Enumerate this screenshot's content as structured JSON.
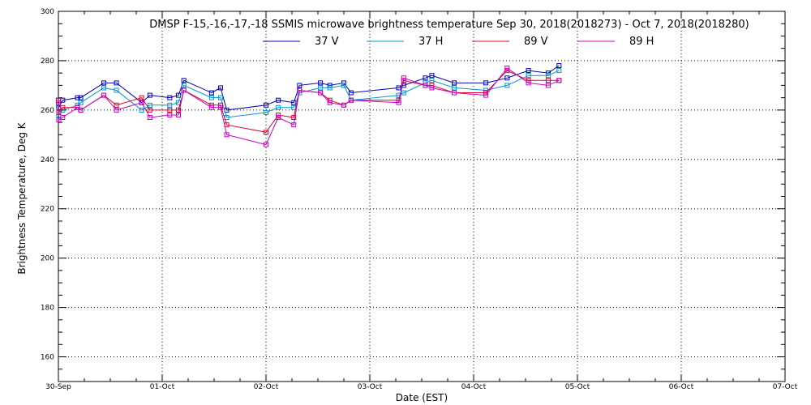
{
  "chart_data": {
    "type": "line",
    "title": "DMSP F-15,-16,-17,-18 SSMIS microwave brightness temperature Sep 30, 2018(2018273) - Oct  7, 2018(2018280)",
    "xlabel": "Date (EST)",
    "ylabel": "Brightness Temperature, Deg K",
    "xlim": [
      "2018-09-30T00:00",
      "2018-10-07T00:00"
    ],
    "ylim": [
      150,
      300
    ],
    "x_ticks": [
      "30-Sep",
      "01-Oct",
      "02-Oct",
      "03-Oct",
      "04-Oct",
      "05-Oct",
      "06-Oct",
      "07-Oct"
    ],
    "y_ticks": [
      160,
      180,
      200,
      220,
      240,
      260,
      280,
      300
    ],
    "grid": true,
    "legend_position": "top-center",
    "series": [
      {
        "name": "37 V",
        "color": "#0000b4",
        "x": [
          "2018-09-30T00:00",
          "2018-09-30T00:05",
          "2018-09-30T01:00",
          "2018-09-30T04:25",
          "2018-09-30T05:10",
          "2018-09-30T10:30",
          "2018-09-30T13:25",
          "2018-09-30T19:15",
          "2018-09-30T21:10",
          "2018-10-01T01:45",
          "2018-10-01T03:45",
          "2018-10-01T05:00",
          "2018-10-01T11:25",
          "2018-10-01T13:30",
          "2018-10-01T14:55",
          "2018-10-02T00:00",
          "2018-10-02T02:50",
          "2018-10-02T06:25",
          "2018-10-02T07:45",
          "2018-10-02T12:35",
          "2018-10-02T14:45",
          "2018-10-02T18:00",
          "2018-10-02T19:40",
          "2018-10-03T06:40",
          "2018-10-03T07:50",
          "2018-10-03T12:50",
          "2018-10-03T14:20",
          "2018-10-03T19:30",
          "2018-10-04T02:50",
          "2018-10-04T07:45",
          "2018-10-04T12:40",
          "2018-10-04T17:15",
          "2018-10-04T19:45"
        ],
        "y": [
          264,
          261,
          264,
          265,
          265,
          271,
          271,
          263,
          266,
          265,
          266,
          272,
          267,
          269,
          260,
          262,
          264,
          263,
          270,
          271,
          270,
          271,
          267,
          269,
          270,
          273,
          274,
          271,
          271,
          273,
          276,
          275,
          278
        ]
      },
      {
        "name": "37 H",
        "color": "#0096d2",
        "x": [
          "2018-09-30T00:00",
          "2018-09-30T00:05",
          "2018-09-30T01:00",
          "2018-09-30T04:25",
          "2018-09-30T05:10",
          "2018-09-30T10:30",
          "2018-09-30T13:25",
          "2018-09-30T19:15",
          "2018-09-30T21:10",
          "2018-10-01T01:45",
          "2018-10-01T03:45",
          "2018-10-01T05:00",
          "2018-10-01T11:25",
          "2018-10-01T13:30",
          "2018-10-01T14:55",
          "2018-10-02T00:00",
          "2018-10-02T02:50",
          "2018-10-02T06:25",
          "2018-10-02T07:45",
          "2018-10-02T12:35",
          "2018-10-02T14:45",
          "2018-10-02T18:00",
          "2018-10-02T19:40",
          "2018-10-03T06:40",
          "2018-10-03T07:50",
          "2018-10-03T12:50",
          "2018-10-03T14:20",
          "2018-10-03T19:30",
          "2018-10-04T02:50",
          "2018-10-04T07:45",
          "2018-10-04T12:40",
          "2018-10-04T17:15",
          "2018-10-04T19:45"
        ],
        "y": [
          262,
          258,
          260,
          262,
          263,
          269,
          268,
          260,
          262,
          262,
          263,
          270,
          265,
          265,
          257,
          259,
          261,
          261,
          267,
          269,
          269,
          270,
          264,
          266,
          267,
          271,
          272,
          269,
          268,
          270,
          274,
          274,
          276
        ]
      },
      {
        "name": "89 V",
        "color": "#e60028",
        "x": [
          "2018-09-30T00:00",
          "2018-09-30T00:05",
          "2018-09-30T01:00",
          "2018-09-30T04:25",
          "2018-09-30T05:10",
          "2018-09-30T10:30",
          "2018-09-30T13:25",
          "2018-09-30T19:15",
          "2018-09-30T21:10",
          "2018-10-01T01:45",
          "2018-10-01T03:45",
          "2018-10-01T05:00",
          "2018-10-01T11:25",
          "2018-10-01T13:30",
          "2018-10-01T14:55",
          "2018-10-02T00:00",
          "2018-10-02T02:50",
          "2018-10-02T06:25",
          "2018-10-02T07:45",
          "2018-10-02T12:35",
          "2018-10-02T14:45",
          "2018-10-02T18:00",
          "2018-10-02T19:40",
          "2018-10-03T06:40",
          "2018-10-03T07:50",
          "2018-10-03T12:50",
          "2018-10-03T14:20",
          "2018-10-03T19:30",
          "2018-10-04T02:50",
          "2018-10-04T07:45",
          "2018-10-04T12:40",
          "2018-10-04T17:15",
          "2018-10-04T19:45"
        ],
        "y": [
          264,
          259,
          261,
          261,
          260,
          266,
          262,
          265,
          260,
          260,
          260,
          268,
          262,
          262,
          254,
          251,
          258,
          257,
          268,
          267,
          264,
          262,
          264,
          264,
          272,
          270,
          270,
          267,
          267,
          276,
          272,
          272,
          272
        ]
      },
      {
        "name": "89 H",
        "color": "#c800c8",
        "x": [
          "2018-09-30T00:00",
          "2018-09-30T00:05",
          "2018-09-30T01:00",
          "2018-09-30T04:25",
          "2018-09-30T05:10",
          "2018-09-30T10:30",
          "2018-09-30T13:25",
          "2018-09-30T19:15",
          "2018-09-30T21:10",
          "2018-10-01T01:45",
          "2018-10-01T03:45",
          "2018-10-01T05:00",
          "2018-10-01T11:25",
          "2018-10-01T13:30",
          "2018-10-01T14:55",
          "2018-10-02T00:00",
          "2018-10-02T02:50",
          "2018-10-02T06:25",
          "2018-10-02T07:45",
          "2018-10-02T12:35",
          "2018-10-02T14:45",
          "2018-10-02T18:00",
          "2018-10-02T19:40",
          "2018-10-03T06:40",
          "2018-10-03T07:50",
          "2018-10-03T12:50",
          "2018-10-03T14:20",
          "2018-10-03T19:30",
          "2018-10-04T02:50",
          "2018-10-04T07:45",
          "2018-10-04T12:40",
          "2018-10-04T17:15",
          "2018-10-04T19:45"
        ],
        "y": [
          263,
          256,
          257,
          261,
          260,
          266,
          260,
          263,
          257,
          258,
          258,
          268,
          261,
          261,
          250,
          246,
          257,
          254,
          268,
          267,
          263,
          262,
          264,
          263,
          273,
          270,
          269,
          267,
          266,
          277,
          271,
          270,
          272
        ]
      }
    ]
  }
}
